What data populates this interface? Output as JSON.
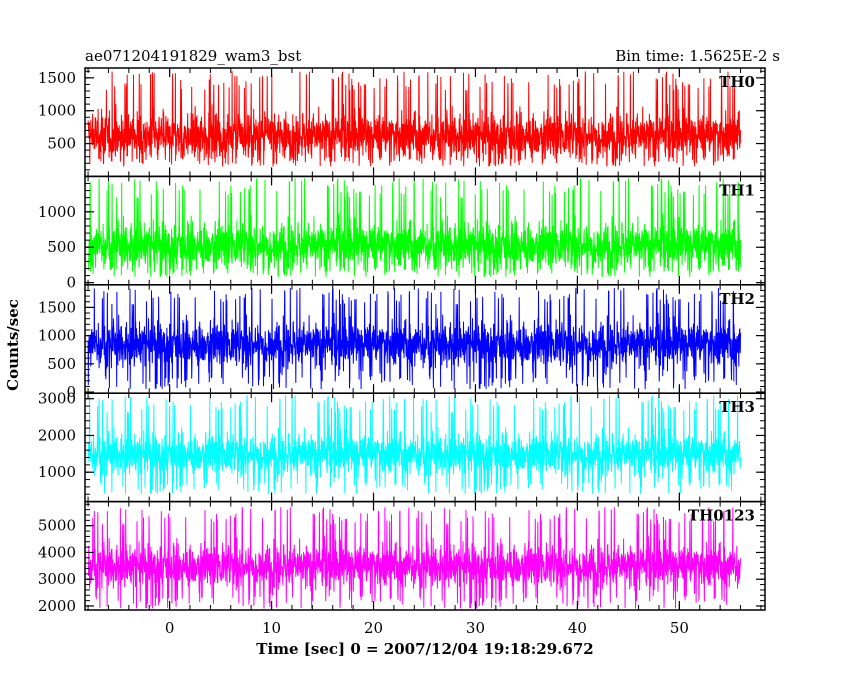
{
  "header": {
    "title": "ae071204191829_wam3_bst",
    "bin_time": "Bin time: 1.5625E-2 s"
  },
  "chart_data": [
    {
      "type": "line",
      "series": [
        {
          "name": "TH0",
          "color": "#ff0000",
          "min": 150,
          "max": 1600,
          "mean": 620,
          "sd": 260
        }
      ],
      "y_ticks": [
        500,
        1000,
        1500
      ],
      "ylim": [
        0,
        1650
      ]
    },
    {
      "type": "line",
      "series": [
        {
          "name": "TH1",
          "color": "#00ff00",
          "min": 80,
          "max": 1480,
          "mean": 530,
          "sd": 240
        }
      ],
      "y_ticks": [
        0,
        500,
        1000
      ],
      "ylim": [
        -30,
        1500
      ]
    },
    {
      "type": "line",
      "series": [
        {
          "name": "TH2",
          "color": "#0000ff",
          "min": 50,
          "max": 1850,
          "mean": 850,
          "sd": 300
        }
      ],
      "y_ticks": [
        0,
        500,
        1000,
        1500
      ],
      "ylim": [
        -20,
        1900
      ]
    },
    {
      "type": "line",
      "series": [
        {
          "name": "TH3",
          "color": "#00ffff",
          "min": 400,
          "max": 3100,
          "mean": 1500,
          "sd": 420
        }
      ],
      "y_ticks": [
        1000,
        2000,
        3000
      ],
      "ylim": [
        200,
        3150
      ]
    },
    {
      "type": "line",
      "series": [
        {
          "name": "TH0123",
          "color": "#ff00ff",
          "min": 1900,
          "max": 5700,
          "mean": 3500,
          "sd": 600
        }
      ],
      "y_ticks": [
        2000,
        3000,
        4000,
        5000
      ],
      "ylim": [
        1850,
        5900
      ]
    }
  ],
  "x_axis": {
    "label": "Time [sec] 0 = 2007/12/04 19:18:29.672",
    "ticks": [
      0,
      10,
      20,
      30,
      40,
      50
    ],
    "xlim": [
      -8.3,
      58.4
    ],
    "data_range": [
      -8,
      56
    ]
  },
  "y_axis_label": "Counts/sec"
}
